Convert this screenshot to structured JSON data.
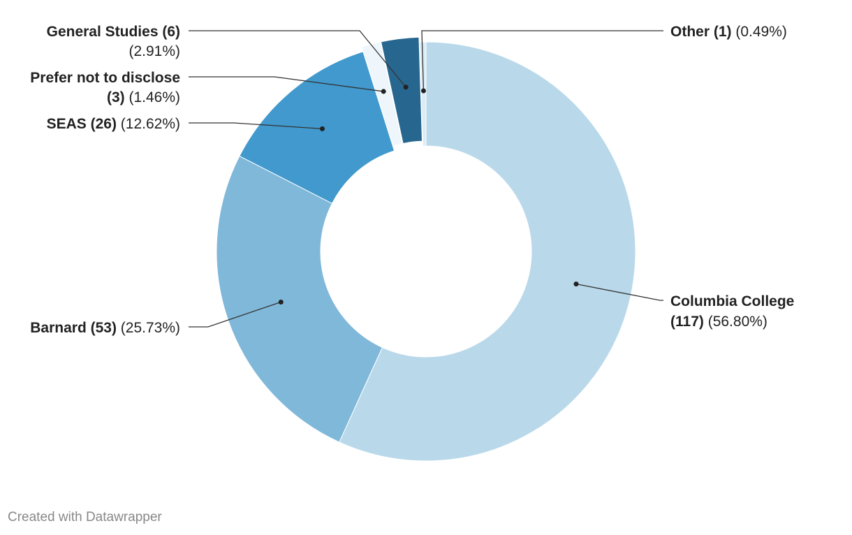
{
  "chart_data": {
    "type": "pie",
    "donut": true,
    "slices": [
      {
        "name": "Columbia College",
        "count": "117",
        "value": 56.8,
        "pct": "56.80%",
        "color": "#b9d9ea"
      },
      {
        "name": "Barnard",
        "count": "53",
        "value": 25.73,
        "pct": "25.73%",
        "color": "#80b8da"
      },
      {
        "name": "SEAS",
        "count": "26",
        "value": 12.62,
        "pct": "12.62%",
        "color": "#4199cd"
      },
      {
        "name": "Prefer not to disclose",
        "count": "3",
        "value": 1.46,
        "pct": "1.46%",
        "color": "#eef6fb"
      },
      {
        "name": "General Studies",
        "count": "6",
        "value": 2.91,
        "pct": "2.91%",
        "color": "#27678f"
      },
      {
        "name": "Other",
        "count": "1",
        "value": 0.49,
        "pct": "0.49%",
        "color": "#dcecf6"
      }
    ]
  },
  "footer": {
    "credit": "Created with Datawrapper"
  }
}
